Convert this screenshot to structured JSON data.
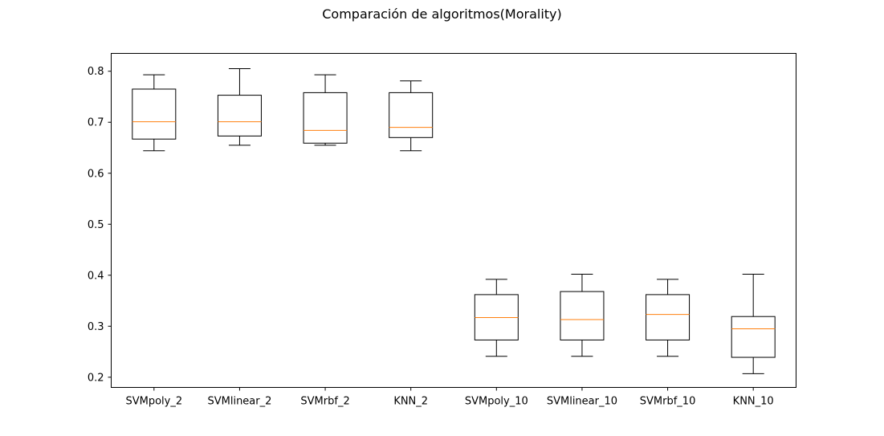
{
  "chart_data": {
    "type": "box",
    "title": "Comparación de algoritmos(Morality)",
    "xlabel": "",
    "ylabel": "",
    "ylim": [
      0.18,
      0.835
    ],
    "yticks": [
      0.2,
      0.3,
      0.4,
      0.5,
      0.6,
      0.7,
      0.8
    ],
    "ytick_labels": [
      "0.2",
      "0.3",
      "0.4",
      "0.5",
      "0.6",
      "0.7",
      "0.8"
    ],
    "grid": false,
    "categories": [
      "SVMpoly_2",
      "SVMlinear_2",
      "SVMrbf_2",
      "KNN_2",
      "SVMpoly_10",
      "SVMlinear_10",
      "SVMrbf_10",
      "KNN_10"
    ],
    "boxes": [
      {
        "label": "SVMpoly_2",
        "whisker_low": 0.644,
        "q1": 0.667,
        "median": 0.701,
        "q3": 0.765,
        "whisker_high": 0.793
      },
      {
        "label": "SVMlinear_2",
        "whisker_low": 0.655,
        "q1": 0.673,
        "median": 0.701,
        "q3": 0.753,
        "whisker_high": 0.805
      },
      {
        "label": "SVMrbf_2",
        "whisker_low": 0.655,
        "q1": 0.659,
        "median": 0.684,
        "q3": 0.758,
        "whisker_high": 0.793
      },
      {
        "label": "KNN_2",
        "whisker_low": 0.644,
        "q1": 0.67,
        "median": 0.69,
        "q3": 0.758,
        "whisker_high": 0.781
      },
      {
        "label": "SVMpoly_10",
        "whisker_low": 0.241,
        "q1": 0.273,
        "median": 0.317,
        "q3": 0.362,
        "whisker_high": 0.392
      },
      {
        "label": "SVMlinear_10",
        "whisker_low": 0.241,
        "q1": 0.273,
        "median": 0.313,
        "q3": 0.368,
        "whisker_high": 0.402
      },
      {
        "label": "SVMrbf_10",
        "whisker_low": 0.241,
        "q1": 0.273,
        "median": 0.323,
        "q3": 0.362,
        "whisker_high": 0.392
      },
      {
        "label": "KNN_10",
        "whisker_low": 0.207,
        "q1": 0.239,
        "median": 0.295,
        "q3": 0.319,
        "whisker_high": 0.402
      }
    ],
    "colors": {
      "box": "#000000",
      "median": "#ff7f0e",
      "background": "#ffffff"
    }
  }
}
